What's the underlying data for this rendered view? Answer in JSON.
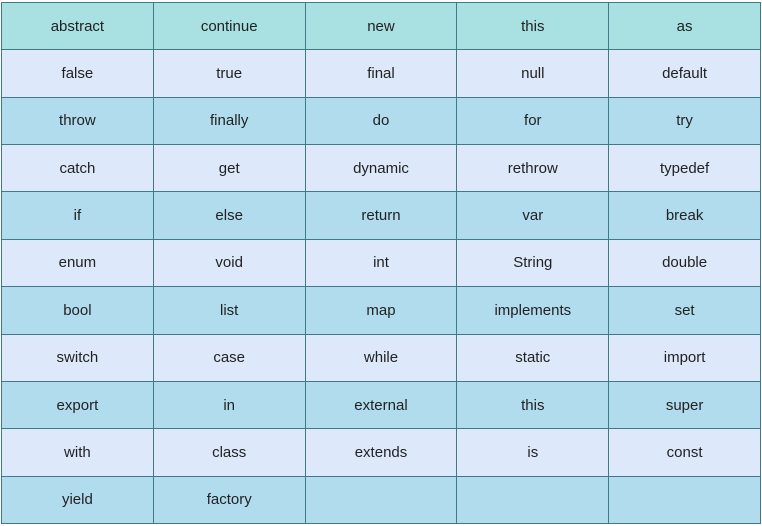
{
  "table": {
    "rows": [
      [
        "abstract",
        "continue",
        "new",
        "this",
        "as"
      ],
      [
        "false",
        "true",
        "final",
        "null",
        "default"
      ],
      [
        "throw",
        "finally",
        "do",
        "for",
        "try"
      ],
      [
        "catch",
        "get",
        "dynamic",
        "rethrow",
        "typedef"
      ],
      [
        "if",
        "else",
        "return",
        "var",
        "break"
      ],
      [
        "enum",
        "void",
        "int",
        "String",
        "double"
      ],
      [
        "bool",
        "list",
        "map",
        "implements",
        "set"
      ],
      [
        "switch",
        "case",
        "while",
        "static",
        "import"
      ],
      [
        "export",
        "in",
        "external",
        "this",
        "super"
      ],
      [
        "with",
        "class",
        "extends",
        "is",
        "const"
      ],
      [
        "yield",
        "factory"
      ]
    ]
  }
}
